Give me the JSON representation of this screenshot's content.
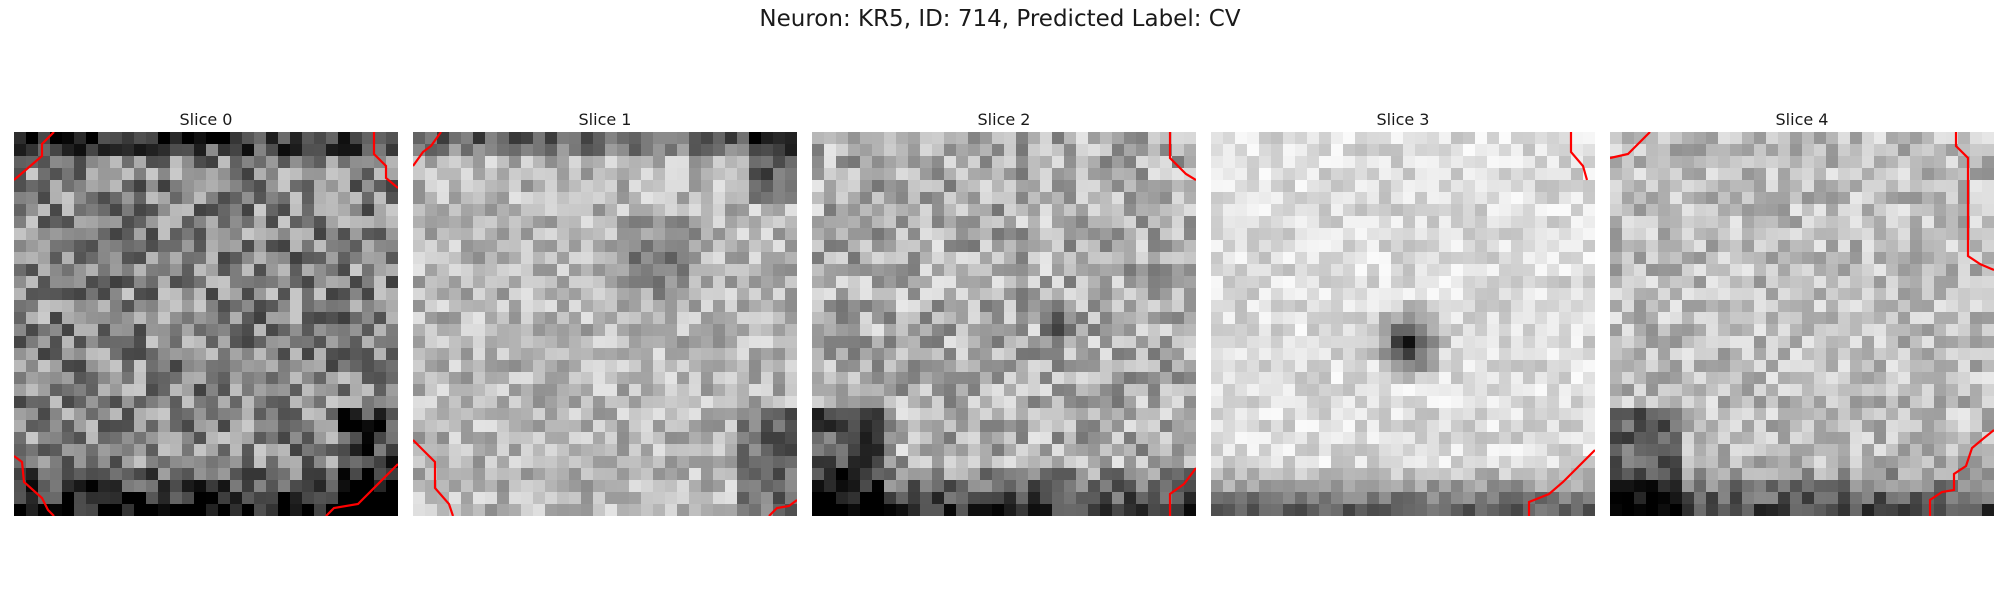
{
  "title": "Neuron: KR5, ID: 714, Predicted Label: CV",
  "overlay_color": "#ff0000",
  "slices": [
    {
      "label": "Slice 0",
      "brightness": 0.52,
      "spread": 0.55,
      "blob": null,
      "dark_edges": [
        "top",
        "bottom",
        "bottom-right"
      ],
      "contours": [
        "tl",
        "tr",
        "bl",
        "br"
      ]
    },
    {
      "label": "Slice 1",
      "brightness": 0.72,
      "spread": 0.35,
      "blob": "soft",
      "dark_edges": [
        "top",
        "top-right",
        "bottom-right"
      ],
      "contours": [
        "tl",
        "bl",
        "br"
      ]
    },
    {
      "label": "Slice 2",
      "brightness": 0.68,
      "spread": 0.45,
      "blob": "small",
      "dark_edges": [
        "bottom",
        "bottom-left"
      ],
      "contours": [
        "tr",
        "br"
      ]
    },
    {
      "label": "Slice 3",
      "brightness": 0.86,
      "spread": 0.25,
      "blob": "dark",
      "dark_edges": [
        "bottom"
      ],
      "contours": [
        "tr",
        "br"
      ]
    },
    {
      "label": "Slice 4",
      "brightness": 0.74,
      "spread": 0.35,
      "blob": null,
      "dark_edges": [
        "bottom",
        "bottom-left"
      ],
      "contours": [
        "tl",
        "tr",
        "br"
      ]
    }
  ]
}
